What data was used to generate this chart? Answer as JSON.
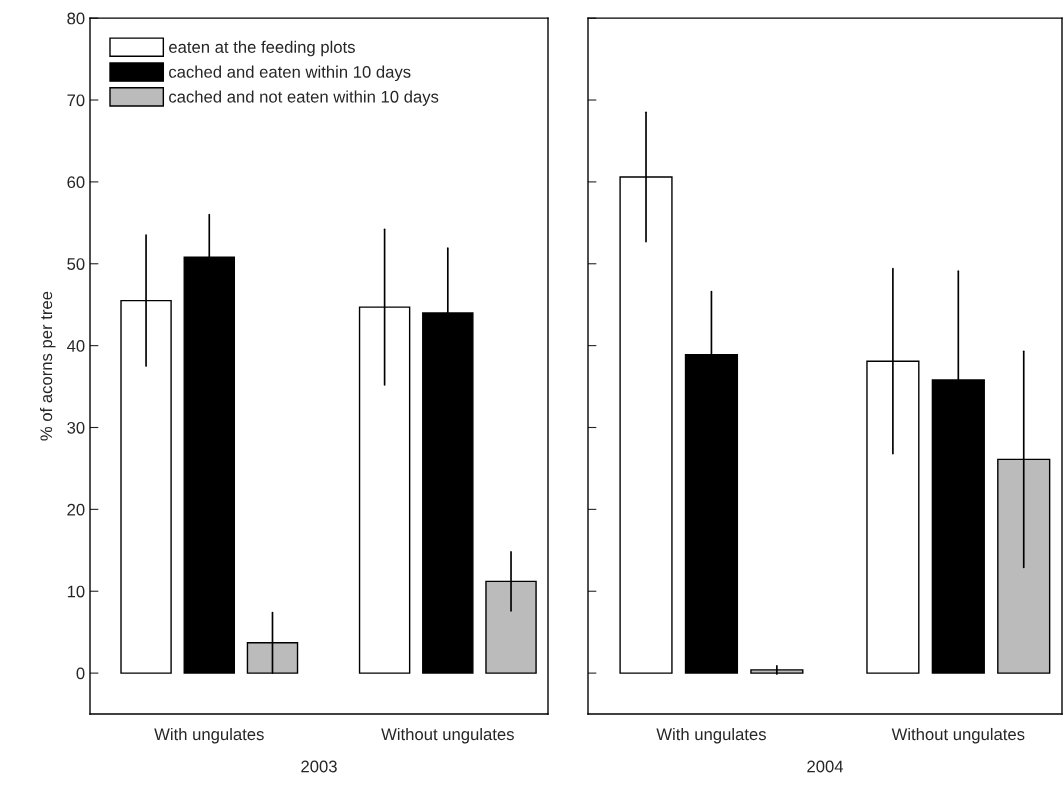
{
  "chart_data": [
    {
      "type": "bar",
      "xlabel": "2003",
      "ylabel": "% of acorns per tree",
      "categories": [
        "With ungulates",
        "Without ungulates"
      ],
      "ylim": [
        -5,
        80
      ],
      "yticks": [
        0,
        10,
        20,
        30,
        40,
        50,
        60,
        70,
        80
      ],
      "legend": "top left",
      "grid": false,
      "series": [
        {
          "name": "eaten at the feeding plots",
          "color": "#ffffff",
          "values": [
            45.5,
            44.7
          ],
          "errors": [
            8.0,
            9.5
          ]
        },
        {
          "name": "cached and eaten within 10 days",
          "color": "#000000",
          "values": [
            50.8,
            44.0
          ],
          "errors": [
            5.2,
            7.9
          ]
        },
        {
          "name": "cached and not eaten within 10 days",
          "color": "#bbbbbb",
          "values": [
            3.7,
            11.2
          ],
          "errors": [
            3.7,
            3.6
          ]
        }
      ]
    },
    {
      "type": "bar",
      "xlabel": "2004",
      "categories": [
        "With ungulates",
        "Without ungulates"
      ],
      "ylim": [
        -5,
        80
      ],
      "yticks": [
        {
          "value": 0,
          "label": null
        },
        {
          "value": 10,
          "label": null
        },
        {
          "value": 20,
          "label": null
        },
        {
          "value": 30,
          "label": null
        },
        {
          "value": 40,
          "label": null
        },
        {
          "value": 50,
          "label": null
        },
        {
          "value": 60,
          "label": null
        },
        {
          "value": 70,
          "label": null
        },
        {
          "value": 80,
          "label": null
        }
      ],
      "tick_labels": "x",
      "grid": false,
      "series": [
        {
          "color": "#ffffff",
          "values": [
            60.6,
            38.1
          ],
          "errors": [
            7.9,
            11.3
          ]
        },
        {
          "color": "#000000",
          "values": [
            38.9,
            35.8
          ],
          "errors": [
            7.7,
            13.3
          ]
        },
        {
          "color": "#bbbbbb",
          "values": [
            0.4,
            26.1
          ],
          "errors": [
            0.5,
            13.2
          ]
        }
      ]
    }
  ]
}
